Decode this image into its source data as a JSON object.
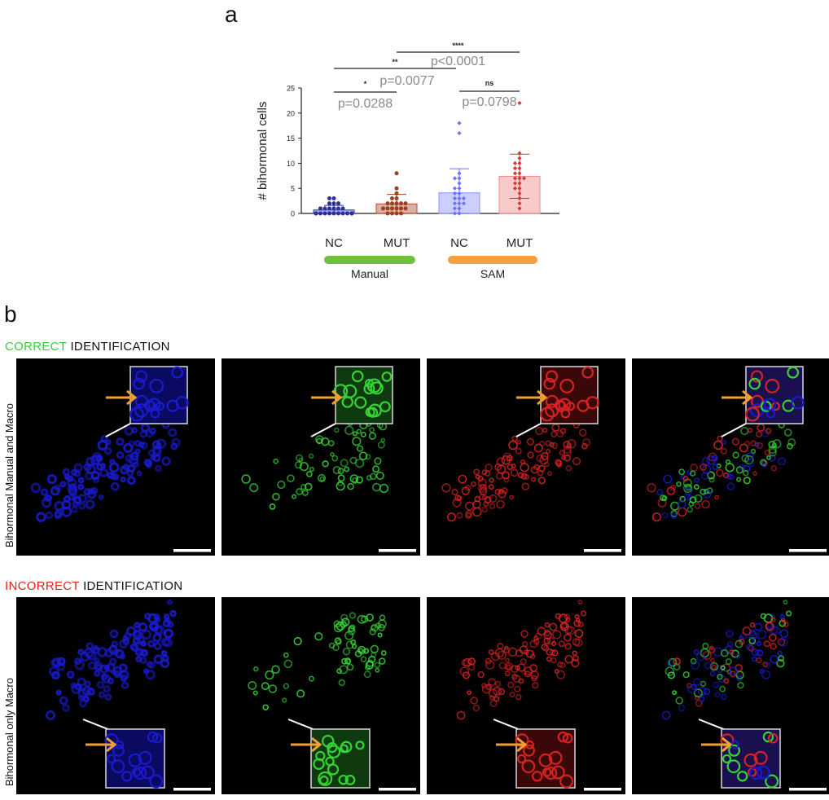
{
  "panel_a": {
    "letter": "a",
    "chart_data": {
      "type": "bar",
      "categories": [
        "NC",
        "MUT",
        "NC",
        "MUT"
      ],
      "groups": [
        {
          "label": "Manual",
          "color": "#6cc23a",
          "categories": [
            0,
            1
          ]
        },
        {
          "label": "SAM",
          "color": "#f5a040",
          "categories": [
            2,
            3
          ]
        }
      ],
      "values": [
        0.7,
        1.9,
        4.1,
        7.4
      ],
      "error_sd": [
        0.9,
        1.9,
        4.8,
        4.4
      ],
      "bar_colors": [
        "#3a40b8",
        "#b05030",
        "#8c92ff",
        "#f08a8a"
      ],
      "point_colors": [
        "#2a2f9a",
        "#9a4020",
        "#6a72ff",
        "#d03a3a"
      ],
      "points": [
        [
          0,
          0,
          0,
          0,
          0,
          0,
          0,
          0,
          0,
          0,
          0,
          0,
          0,
          1,
          1,
          1,
          1,
          1,
          1,
          2,
          2,
          2,
          3,
          3
        ],
        [
          0,
          0,
          0,
          0,
          1,
          1,
          1,
          1,
          1,
          1,
          2,
          2,
          2,
          2,
          2,
          3,
          3,
          4,
          5,
          8
        ],
        [
          0,
          0,
          1,
          1,
          2,
          2,
          2,
          3,
          3,
          3,
          4,
          4,
          5,
          5,
          6,
          7,
          7,
          8,
          18,
          16
        ],
        [
          1,
          2,
          3,
          4,
          5,
          5,
          6,
          6,
          7,
          7,
          7,
          8,
          8,
          9,
          9,
          10,
          10,
          11,
          12,
          22
        ]
      ],
      "ylabel": "# bihormonal cells",
      "ylim": [
        0,
        25
      ],
      "yticks": [
        0,
        5,
        10,
        15,
        20,
        25
      ],
      "comparisons": [
        {
          "from": 0,
          "to": 1,
          "stars": "*",
          "p": "p=0.0288"
        },
        {
          "from": 0,
          "to": 2,
          "stars": "**",
          "p": "p=0.0077"
        },
        {
          "from": 1,
          "to": 3,
          "stars": "****",
          "p": "p<0.0001"
        },
        {
          "from": 2,
          "to": 3,
          "stars": "ns",
          "p": "p=0.0798"
        }
      ]
    }
  },
  "panel_b": {
    "letter": "b",
    "correct_title": {
      "colored": "CORRECT",
      "rest": " IDENTIFICATION",
      "color": "#2ed13a"
    },
    "incorrect_title": {
      "colored": "INCORRECT",
      "rest": " IDENTIFICATION",
      "color": "#e62020"
    },
    "row1_label": "Bihormonal Manual and Macro",
    "row2_label": "Bihormonal only Macro",
    "channels": [
      "blue",
      "green",
      "red",
      "merge"
    ]
  }
}
